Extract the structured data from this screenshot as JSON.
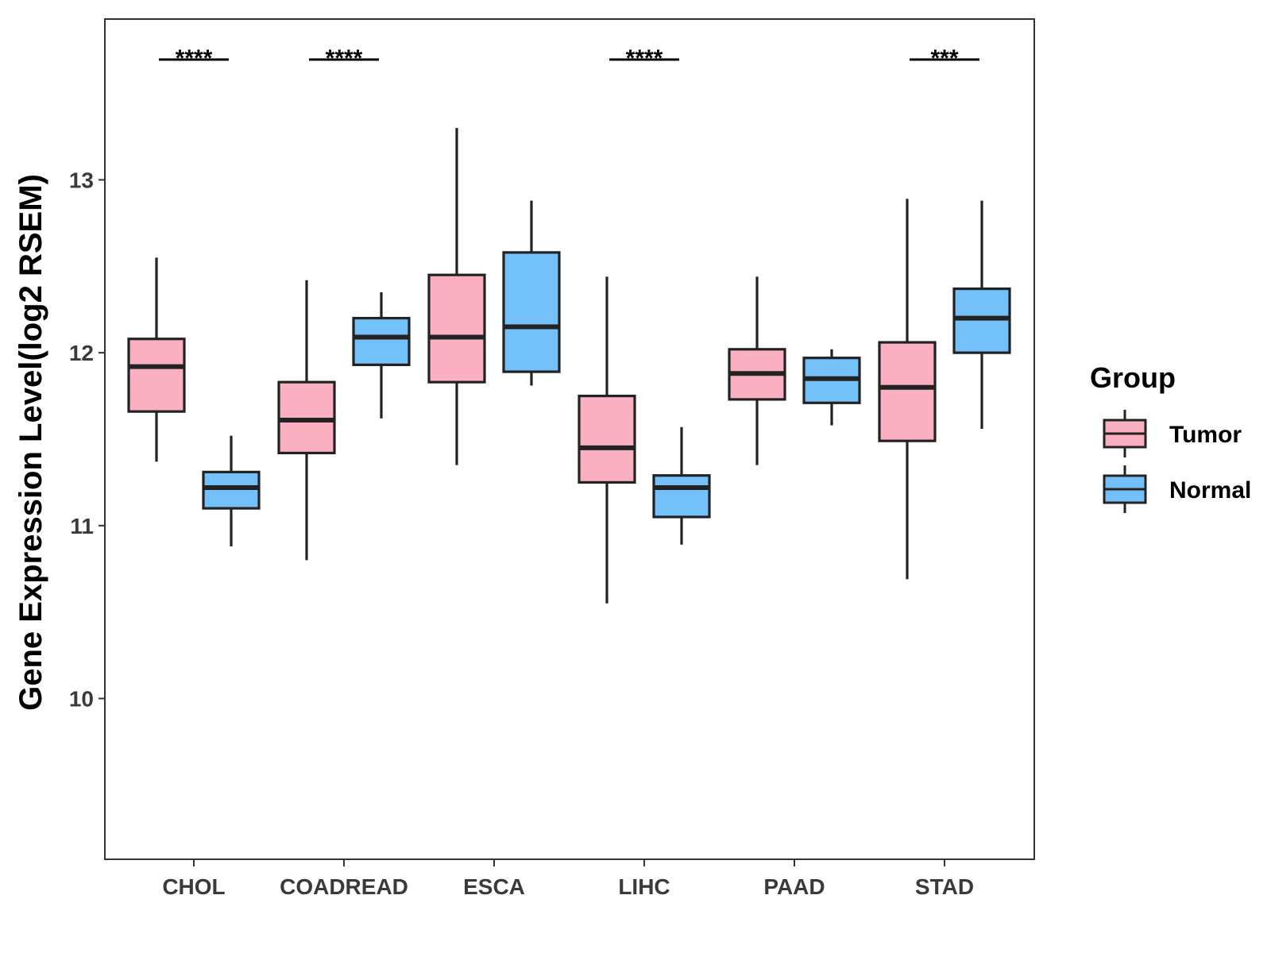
{
  "chart_data": {
    "type": "box",
    "ylabel": "Gene Expression Level(log2 RSEM)",
    "xlabel": "",
    "ylim": [
      9.07,
      13.93
    ],
    "y_ticks": [
      10,
      11,
      12,
      13
    ],
    "categories": [
      "CHOL",
      "COADREAD",
      "ESCA",
      "LIHC",
      "PAAD",
      "STAD"
    ],
    "grid": false,
    "legend": {
      "title": "Group",
      "position": "right",
      "entries": [
        "Tumor",
        "Normal"
      ]
    },
    "colors": {
      "Tumor": "#fbb0c2",
      "Normal": "#74c0f8",
      "outline": "#222222"
    },
    "series": [
      {
        "name": "Tumor",
        "boxes": [
          {
            "category": "CHOL",
            "whisker_low": 11.37,
            "q1": 11.66,
            "median": 11.92,
            "q3": 12.08,
            "whisker_high": 12.55
          },
          {
            "category": "COADREAD",
            "whisker_low": 10.8,
            "q1": 11.42,
            "median": 11.61,
            "q3": 11.83,
            "whisker_high": 12.42
          },
          {
            "category": "ESCA",
            "whisker_low": 11.35,
            "q1": 11.83,
            "median": 12.09,
            "q3": 12.45,
            "whisker_high": 13.3
          },
          {
            "category": "LIHC",
            "whisker_low": 10.55,
            "q1": 11.25,
            "median": 11.45,
            "q3": 11.75,
            "whisker_high": 12.44
          },
          {
            "category": "PAAD",
            "whisker_low": 11.35,
            "q1": 11.73,
            "median": 11.88,
            "q3": 12.02,
            "whisker_high": 12.44
          },
          {
            "category": "STAD",
            "whisker_low": 10.69,
            "q1": 11.49,
            "median": 11.8,
            "q3": 12.06,
            "whisker_high": 12.89
          }
        ]
      },
      {
        "name": "Normal",
        "boxes": [
          {
            "category": "CHOL",
            "whisker_low": 10.88,
            "q1": 11.1,
            "median": 11.22,
            "q3": 11.31,
            "whisker_high": 11.52
          },
          {
            "category": "COADREAD",
            "whisker_low": 11.62,
            "q1": 11.93,
            "median": 12.09,
            "q3": 12.2,
            "whisker_high": 12.35
          },
          {
            "category": "ESCA",
            "whisker_low": 11.81,
            "q1": 11.89,
            "median": 12.15,
            "q3": 12.58,
            "whisker_high": 12.88
          },
          {
            "category": "LIHC",
            "whisker_low": 10.89,
            "q1": 11.05,
            "median": 11.22,
            "q3": 11.29,
            "whisker_high": 11.57
          },
          {
            "category": "PAAD",
            "whisker_low": 11.58,
            "q1": 11.71,
            "median": 11.85,
            "q3": 11.97,
            "whisker_high": 12.02
          },
          {
            "category": "STAD",
            "whisker_low": 11.56,
            "q1": 12.0,
            "median": 12.2,
            "q3": 12.37,
            "whisker_high": 12.88
          }
        ]
      }
    ],
    "significance": [
      {
        "category": "CHOL",
        "label": "****"
      },
      {
        "category": "COADREAD",
        "label": "****"
      },
      {
        "category": "LIHC",
        "label": "****"
      },
      {
        "category": "STAD",
        "label": "***"
      }
    ]
  }
}
